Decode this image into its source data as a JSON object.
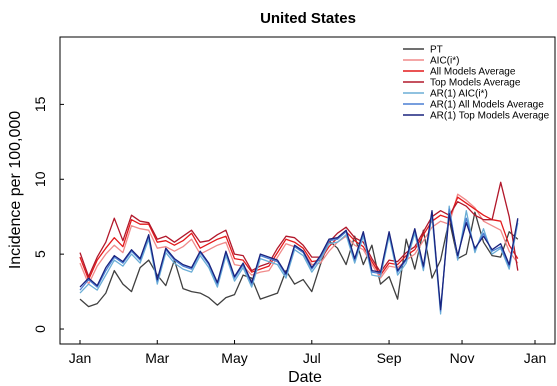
{
  "chart_data": {
    "type": "line",
    "title": "United States",
    "xlabel": "Date",
    "ylabel": "Incidence per 100,000",
    "xlim": [
      0,
      52
    ],
    "ylim": [
      -1,
      19.5
    ],
    "x_ticks": [
      {
        "value": 1,
        "label": "Jan"
      },
      {
        "value": 10,
        "label": "Mar"
      },
      {
        "value": 19,
        "label": "May"
      },
      {
        "value": 28,
        "label": "Jul"
      },
      {
        "value": 37,
        "label": "Sep"
      },
      {
        "value": 45.5,
        "label": "Nov"
      },
      {
        "value": 54,
        "label": "Jan"
      }
    ],
    "y_ticks": [
      0,
      5,
      10,
      15
    ],
    "grid": false,
    "legend_position": "top-right",
    "x": [
      1,
      2,
      3,
      4,
      5,
      6,
      7,
      8,
      9,
      10,
      11,
      12,
      13,
      14,
      15,
      16,
      17,
      18,
      19,
      20,
      21,
      22,
      23,
      24,
      25,
      26,
      27,
      28,
      29,
      30,
      31,
      32,
      33,
      34,
      35,
      36,
      37,
      38,
      39,
      40,
      41,
      42,
      43,
      44,
      45,
      46,
      47,
      48,
      49,
      50,
      51,
      52
    ],
    "series": [
      {
        "name": "PT",
        "color": "#404040",
        "values": [
          2.0,
          1.5,
          1.7,
          2.4,
          3.9,
          3.0,
          2.5,
          4.1,
          4.6,
          3.6,
          2.9,
          4.6,
          2.7,
          2.5,
          2.4,
          2.1,
          1.6,
          2.1,
          2.3,
          3.6,
          3.4,
          2.0,
          2.2,
          2.4,
          3.9,
          3.0,
          3.3,
          2.5,
          4.3,
          5.9,
          5.4,
          4.3,
          6.2,
          4.3,
          5.6,
          3.0,
          3.5,
          2.0,
          6.0,
          4.0,
          6.6,
          3.4,
          4.6,
          7.3,
          4.7,
          5.0,
          7.8,
          5.8,
          4.9,
          4.8,
          6.5,
          6.0
        ]
      },
      {
        "name": "AIC(i*)",
        "color": "#f08a8a",
        "values": [
          4.4,
          3.0,
          4.2,
          5.0,
          5.6,
          5.1,
          6.9,
          6.7,
          6.6,
          5.4,
          5.5,
          5.2,
          5.5,
          6.0,
          5.0,
          5.3,
          5.6,
          5.8,
          4.3,
          4.2,
          3.6,
          3.8,
          3.9,
          4.8,
          5.7,
          5.5,
          5.2,
          4.3,
          4.4,
          5.2,
          5.8,
          6.2,
          5.6,
          5.3,
          4.3,
          3.4,
          4.2,
          4.1,
          4.6,
          5.0,
          5.9,
          6.8,
          7.2,
          7.0,
          9.0,
          8.6,
          8.1,
          7.2,
          6.9,
          6.6,
          5.2,
          4.4
        ]
      },
      {
        "name": "All Models Average",
        "color": "#e31a1c",
        "values": [
          4.8,
          3.3,
          4.6,
          5.4,
          6.1,
          5.5,
          7.3,
          7.0,
          7.0,
          5.8,
          5.9,
          5.6,
          5.9,
          6.4,
          5.4,
          5.7,
          6.0,
          6.2,
          4.7,
          4.6,
          3.8,
          4.0,
          4.2,
          5.1,
          6.0,
          5.8,
          5.4,
          4.5,
          4.6,
          5.5,
          6.1,
          6.5,
          5.9,
          5.5,
          4.5,
          3.6,
          4.4,
          4.3,
          4.9,
          5.3,
          6.3,
          7.2,
          7.6,
          7.4,
          8.8,
          8.4,
          8.0,
          7.6,
          7.3,
          7.2,
          5.6,
          4.7
        ]
      },
      {
        "name": "Top Models Average",
        "color": "#b2182b",
        "values": [
          5.1,
          3.5,
          4.8,
          5.8,
          7.4,
          5.9,
          7.6,
          7.2,
          7.1,
          6.0,
          6.2,
          5.8,
          6.2,
          6.6,
          5.8,
          5.9,
          6.3,
          6.6,
          5.0,
          4.9,
          3.9,
          4.2,
          4.4,
          5.4,
          6.2,
          6.1,
          5.6,
          4.8,
          4.8,
          5.8,
          6.4,
          6.8,
          6.1,
          5.8,
          4.7,
          3.8,
          4.6,
          4.5,
          5.1,
          5.5,
          6.5,
          7.5,
          7.9,
          7.6,
          8.5,
          8.2,
          7.6,
          7.3,
          7.3,
          9.8,
          7.5,
          3.9
        ]
      },
      {
        "name": "AR(1) AIC(i*)",
        "color": "#6baed6",
        "values": [
          2.4,
          3.0,
          2.6,
          3.6,
          4.6,
          4.2,
          5.0,
          4.4,
          6.0,
          3.0,
          5.1,
          4.4,
          4.0,
          3.8,
          4.9,
          4.1,
          2.8,
          4.9,
          3.2,
          4.1,
          2.8,
          4.7,
          4.5,
          4.3,
          3.4,
          5.3,
          4.9,
          3.8,
          4.6,
          5.7,
          5.8,
          6.3,
          4.4,
          6.2,
          3.6,
          3.5,
          6.2,
          3.6,
          4.4,
          6.4,
          3.9,
          7.6,
          1.0,
          8.2,
          4.6,
          7.9,
          5.1,
          6.7,
          5.0,
          5.4,
          4.0,
          7.1
        ]
      },
      {
        "name": "AR(1) All Models Average",
        "color": "#4a7fd4",
        "values": [
          2.6,
          3.3,
          2.8,
          3.9,
          4.8,
          4.4,
          5.2,
          4.6,
          6.2,
          3.2,
          5.3,
          4.6,
          4.2,
          4.0,
          5.1,
          4.3,
          3.0,
          5.1,
          3.4,
          4.3,
          3.0,
          4.9,
          4.7,
          4.5,
          3.6,
          5.5,
          5.1,
          4.0,
          4.8,
          5.9,
          6.0,
          6.5,
          4.6,
          6.4,
          3.8,
          3.7,
          6.4,
          3.8,
          4.6,
          6.6,
          4.1,
          7.8,
          1.2,
          8.0,
          4.8,
          7.4,
          5.3,
          6.4,
          5.2,
          5.5,
          4.2,
          7.3
        ]
      },
      {
        "name": "AR(1) Top Models Average",
        "color": "#1a237e",
        "values": [
          2.8,
          3.4,
          2.9,
          4.1,
          4.9,
          4.5,
          5.3,
          4.7,
          6.3,
          3.3,
          5.4,
          4.7,
          4.3,
          4.1,
          5.2,
          4.4,
          3.1,
          5.2,
          3.5,
          4.4,
          3.1,
          5.0,
          4.8,
          4.6,
          3.7,
          5.6,
          5.2,
          4.1,
          4.9,
          6.0,
          6.1,
          6.6,
          4.7,
          6.5,
          3.9,
          3.8,
          6.5,
          3.9,
          4.7,
          6.7,
          4.2,
          7.9,
          1.3,
          7.7,
          4.9,
          7.1,
          5.4,
          6.2,
          5.3,
          5.7,
          4.3,
          7.4
        ]
      }
    ]
  }
}
